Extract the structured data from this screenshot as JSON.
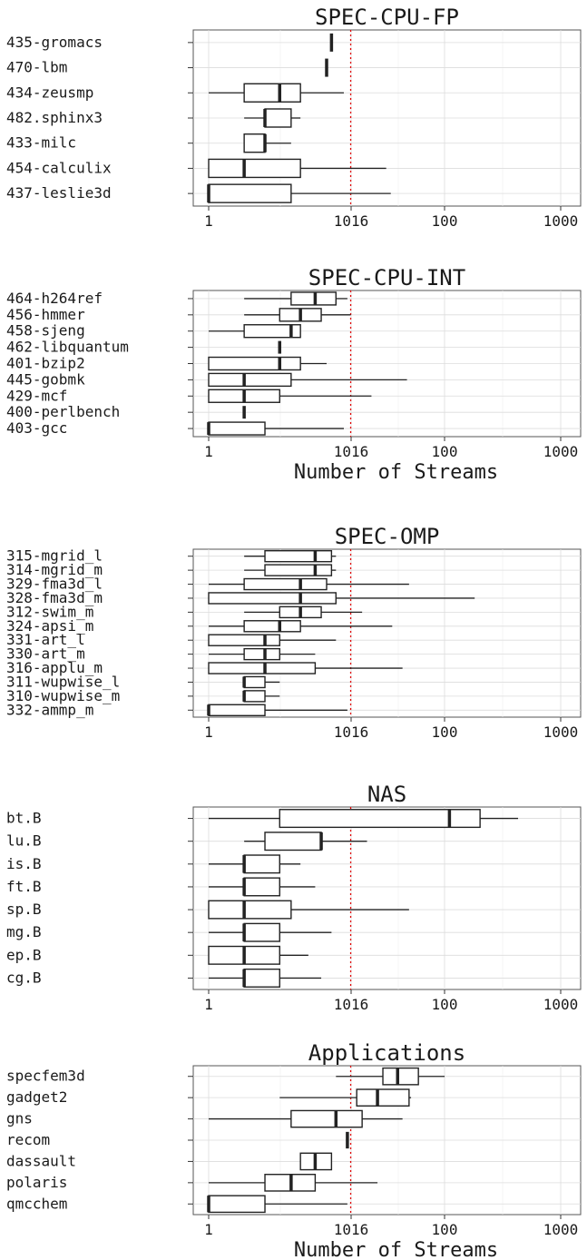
{
  "chart_data": [
    {
      "type": "box",
      "title": "SPEC-CPU-FP",
      "xlabel": "",
      "x_scale": "log",
      "xlim": [
        0.8,
        1200
      ],
      "x_ticks": [
        "1",
        "1016",
        "100",
        "1000"
      ],
      "reference_line": {
        "x": 16,
        "color": "#e00000",
        "style": "dotted"
      },
      "grid": true,
      "categories": [
        "435-gromacs",
        "470-lbm",
        "434-zeusmp",
        "482.sphinx3",
        "433-milc",
        "454-calculix",
        "437-leslie3d"
      ],
      "series": [
        {
          "category": "435-gromacs",
          "min": 11,
          "q1": 11,
          "median": 11,
          "q3": 11,
          "max": 11
        },
        {
          "category": "470-lbm",
          "min": 10,
          "q1": 10,
          "median": 10,
          "q3": 10,
          "max": 10
        },
        {
          "category": "434-zeusmp",
          "min": 1,
          "q1": 2,
          "median": 4,
          "q3": 6,
          "max": 14
        },
        {
          "category": "482.sphinx3",
          "min": 2,
          "q1": 3,
          "median": 3,
          "q3": 5,
          "max": 6
        },
        {
          "category": "433-milc",
          "min": 2,
          "q1": 2,
          "median": 3,
          "q3": 3,
          "max": 5
        },
        {
          "category": "454-calculix",
          "min": 1,
          "q1": 1,
          "median": 2,
          "q3": 6,
          "max": 32
        },
        {
          "category": "437-leslie3d",
          "min": 1,
          "q1": 1,
          "median": 1,
          "q3": 5,
          "max": 35
        }
      ]
    },
    {
      "type": "box",
      "title": "SPEC-CPU-INT",
      "xlabel": "Number of Streams",
      "x_scale": "log",
      "xlim": [
        0.8,
        1200
      ],
      "x_ticks": [
        "1",
        "1016",
        "100",
        "1000"
      ],
      "reference_line": {
        "x": 16,
        "color": "#e00000",
        "style": "dotted"
      },
      "grid": true,
      "categories": [
        "464-h264ref",
        "456-hmmer",
        "458-sjeng",
        "462-libquantum",
        "401-bzip2",
        "445-gobmk",
        "429-mcf",
        "400-perlbench",
        "403-gcc"
      ],
      "series": [
        {
          "category": "464-h264ref",
          "min": 2,
          "q1": 5,
          "median": 8,
          "q3": 12,
          "max": 15
        },
        {
          "category": "456-hmmer",
          "min": 2,
          "q1": 4,
          "median": 6,
          "q3": 9,
          "max": 16
        },
        {
          "category": "458-sjeng",
          "min": 1,
          "q1": 2,
          "median": 5,
          "q3": 6,
          "max": 6
        },
        {
          "category": "462-libquantum",
          "min": 4,
          "q1": 4,
          "median": 4,
          "q3": 4,
          "max": 4
        },
        {
          "category": "401-bzip2",
          "min": 1,
          "q1": 1,
          "median": 4,
          "q3": 6,
          "max": 10
        },
        {
          "category": "445-gobmk",
          "min": 1,
          "q1": 1,
          "median": 2,
          "q3": 5,
          "max": 48
        },
        {
          "category": "429-mcf",
          "min": 1,
          "q1": 1,
          "median": 2,
          "q3": 4,
          "max": 24
        },
        {
          "category": "400-perlbench",
          "min": 2,
          "q1": 2,
          "median": 2,
          "q3": 2,
          "max": 2
        },
        {
          "category": "403-gcc",
          "min": 1,
          "q1": 1,
          "median": 1,
          "q3": 3,
          "max": 14
        }
      ]
    },
    {
      "type": "box",
      "title": "SPEC-OMP",
      "xlabel": "",
      "x_scale": "log",
      "xlim": [
        0.8,
        1200
      ],
      "x_ticks": [
        "1",
        "1016",
        "100",
        "1000"
      ],
      "reference_line": {
        "x": 16,
        "color": "#e00000",
        "style": "dotted"
      },
      "grid": true,
      "categories": [
        "315-mgrid_l",
        "314-mgrid_m",
        "329-fma3d_l",
        "328-fma3d_m",
        "312-swim_m",
        "324-apsi_m",
        "331-art_l",
        "330-art_m",
        "316-applu_m",
        "311-wupwise_l",
        "310-wupwise_m",
        "332-ammp_m"
      ],
      "series": [
        {
          "category": "315-mgrid_l",
          "min": 2,
          "q1": 3,
          "median": 8,
          "q3": 11,
          "max": 12
        },
        {
          "category": "314-mgrid_m",
          "min": 2,
          "q1": 3,
          "median": 8,
          "q3": 11,
          "max": 12
        },
        {
          "category": "329-fma3d_l",
          "min": 1,
          "q1": 2,
          "median": 6,
          "q3": 10,
          "max": 50
        },
        {
          "category": "328-fma3d_m",
          "min": 1,
          "q1": 1,
          "median": 6,
          "q3": 12,
          "max": 180
        },
        {
          "category": "312-swim_m",
          "min": 2,
          "q1": 4,
          "median": 6,
          "q3": 9,
          "max": 20
        },
        {
          "category": "324-apsi_m",
          "min": 1,
          "q1": 2,
          "median": 4,
          "q3": 6,
          "max": 36
        },
        {
          "category": "331-art_l",
          "min": 1,
          "q1": 1,
          "median": 3,
          "q3": 4,
          "max": 12
        },
        {
          "category": "330-art_m",
          "min": 1,
          "q1": 2,
          "median": 3,
          "q3": 4,
          "max": 8
        },
        {
          "category": "316-applu_m",
          "min": 1,
          "q1": 1,
          "median": 3,
          "q3": 8,
          "max": 44
        },
        {
          "category": "311-wupwise_l",
          "min": 2,
          "q1": 2,
          "median": 2,
          "q3": 3,
          "max": 4
        },
        {
          "category": "310-wupwise_m",
          "min": 2,
          "q1": 2,
          "median": 2,
          "q3": 3,
          "max": 4
        },
        {
          "category": "332-ammp_m",
          "min": 1,
          "q1": 1,
          "median": 1,
          "q3": 3,
          "max": 15
        }
      ]
    },
    {
      "type": "box",
      "title": "NAS",
      "xlabel": "",
      "x_scale": "log",
      "xlim": [
        0.8,
        1200
      ],
      "x_ticks": [
        "1",
        "1016",
        "100",
        "1000"
      ],
      "reference_line": {
        "x": 16,
        "color": "#e00000",
        "style": "dotted"
      },
      "grid": true,
      "categories": [
        "bt.B",
        "lu.B",
        "is.B",
        "ft.B",
        "sp.B",
        "mg.B",
        "ep.B",
        "cg.B"
      ],
      "series": [
        {
          "category": "bt.B",
          "min": 1,
          "q1": 4,
          "median": 110,
          "q3": 200,
          "max": 420
        },
        {
          "category": "lu.B",
          "min": 2,
          "q1": 3,
          "median": 9,
          "q3": 9,
          "max": 22
        },
        {
          "category": "is.B",
          "min": 1,
          "q1": 2,
          "median": 2,
          "q3": 4,
          "max": 6
        },
        {
          "category": "ft.B",
          "min": 1,
          "q1": 2,
          "median": 2,
          "q3": 4,
          "max": 8
        },
        {
          "category": "sp.B",
          "min": 1,
          "q1": 1,
          "median": 2,
          "q3": 5,
          "max": 50
        },
        {
          "category": "mg.B",
          "min": 1,
          "q1": 2,
          "median": 2,
          "q3": 4,
          "max": 11
        },
        {
          "category": "ep.B",
          "min": 1,
          "q1": 1,
          "median": 2,
          "q3": 4,
          "max": 7
        },
        {
          "category": "cg.B",
          "min": 1,
          "q1": 2,
          "median": 2,
          "q3": 4,
          "max": 9
        }
      ]
    },
    {
      "type": "box",
      "title": "Applications",
      "xlabel": "Number of Streams",
      "x_scale": "log",
      "xlim": [
        0.8,
        1200
      ],
      "x_ticks": [
        "1",
        "1016",
        "100",
        "1000"
      ],
      "reference_line": {
        "x": 16,
        "color": "#e00000",
        "style": "dotted"
      },
      "grid": true,
      "categories": [
        "specfem3d",
        "gadget2",
        "gns",
        "recom",
        "dassault",
        "polaris",
        "qmcchem"
      ],
      "series": [
        {
          "category": "specfem3d",
          "min": 12,
          "q1": 30,
          "median": 40,
          "q3": 60,
          "max": 100
        },
        {
          "category": "gadget2",
          "min": 4,
          "q1": 18,
          "median": 27,
          "q3": 50,
          "max": 52
        },
        {
          "category": "gns",
          "min": 1,
          "q1": 5,
          "median": 12,
          "q3": 20,
          "max": 44
        },
        {
          "category": "recom",
          "min": 15,
          "q1": 15,
          "median": 15,
          "q3": 15,
          "max": 15
        },
        {
          "category": "dassault",
          "min": 6,
          "q1": 6,
          "median": 8,
          "q3": 11,
          "max": 11
        },
        {
          "category": "polaris",
          "min": 1,
          "q1": 3,
          "median": 5,
          "q3": 8,
          "max": 27
        },
        {
          "category": "qmcchem",
          "min": 1,
          "q1": 1,
          "median": 1,
          "q3": 3,
          "max": 15
        }
      ]
    }
  ]
}
